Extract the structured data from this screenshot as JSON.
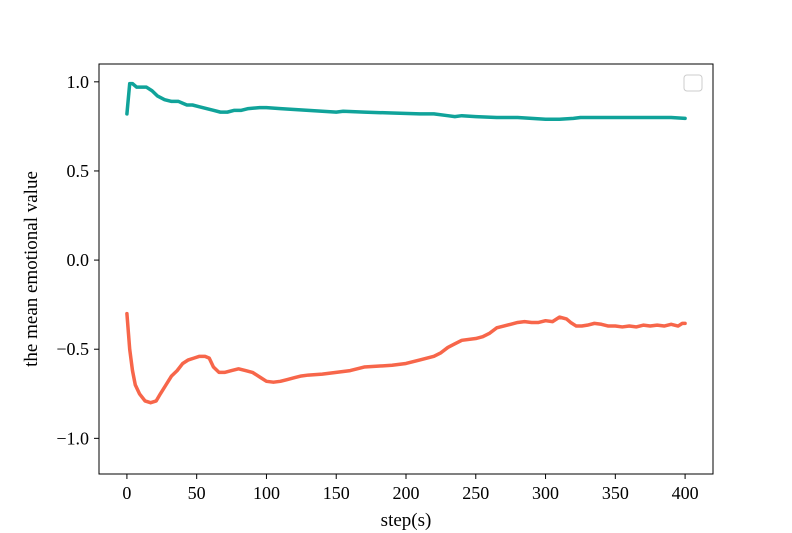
{
  "chart_data": {
    "type": "line",
    "title": "",
    "xlabel": "step(s)",
    "ylabel": "the mean emotional value",
    "xlim": [
      -20,
      420
    ],
    "ylim": [
      -1.2,
      1.1
    ],
    "xticks": [
      0,
      50,
      100,
      150,
      200,
      250,
      300,
      350,
      400
    ],
    "xtick_labels": [
      "0",
      "50",
      "100",
      "150",
      "200",
      "250",
      "300",
      "350",
      "400"
    ],
    "yticks": [
      1.0,
      0.5,
      0.0,
      -0.5,
      -1.0
    ],
    "ytick_labels": [
      "1.0",
      "0.5",
      "0.0",
      "−0.5",
      "−1.0"
    ],
    "grid": false,
    "legend": {
      "placement": "top-right",
      "entries": []
    },
    "series": [
      {
        "color": "#10a39a",
        "points": [
          [
            0,
            0.82
          ],
          [
            2,
            0.99
          ],
          [
            4,
            0.99
          ],
          [
            7,
            0.97
          ],
          [
            10,
            0.97
          ],
          [
            14,
            0.97
          ],
          [
            18,
            0.95
          ],
          [
            22,
            0.92
          ],
          [
            27,
            0.9
          ],
          [
            32,
            0.89
          ],
          [
            37,
            0.89
          ],
          [
            40,
            0.88
          ],
          [
            43,
            0.87
          ],
          [
            47,
            0.87
          ],
          [
            52,
            0.86
          ],
          [
            57,
            0.85
          ],
          [
            62,
            0.84
          ],
          [
            67,
            0.83
          ],
          [
            72,
            0.83
          ],
          [
            77,
            0.84
          ],
          [
            82,
            0.84
          ],
          [
            87,
            0.85
          ],
          [
            95,
            0.855
          ],
          [
            100,
            0.855
          ],
          [
            110,
            0.85
          ],
          [
            120,
            0.845
          ],
          [
            130,
            0.84
          ],
          [
            140,
            0.835
          ],
          [
            150,
            0.83
          ],
          [
            155,
            0.835
          ],
          [
            170,
            0.83
          ],
          [
            190,
            0.825
          ],
          [
            210,
            0.82
          ],
          [
            220,
            0.82
          ],
          [
            230,
            0.81
          ],
          [
            235,
            0.805
          ],
          [
            240,
            0.81
          ],
          [
            250,
            0.805
          ],
          [
            265,
            0.8
          ],
          [
            280,
            0.8
          ],
          [
            290,
            0.795
          ],
          [
            300,
            0.79
          ],
          [
            310,
            0.79
          ],
          [
            320,
            0.795
          ],
          [
            325,
            0.8
          ],
          [
            350,
            0.8
          ],
          [
            370,
            0.8
          ],
          [
            390,
            0.8
          ],
          [
            400,
            0.795
          ]
        ]
      },
      {
        "color": "#f7664a",
        "points": [
          [
            0,
            -0.3
          ],
          [
            1,
            -0.4
          ],
          [
            2,
            -0.5
          ],
          [
            4,
            -0.62
          ],
          [
            6,
            -0.7
          ],
          [
            9,
            -0.75
          ],
          [
            13,
            -0.79
          ],
          [
            17,
            -0.8
          ],
          [
            21,
            -0.79
          ],
          [
            24,
            -0.75
          ],
          [
            28,
            -0.7
          ],
          [
            32,
            -0.65
          ],
          [
            36,
            -0.62
          ],
          [
            40,
            -0.58
          ],
          [
            44,
            -0.56
          ],
          [
            48,
            -0.55
          ],
          [
            52,
            -0.54
          ],
          [
            56,
            -0.54
          ],
          [
            59,
            -0.55
          ],
          [
            62,
            -0.6
          ],
          [
            66,
            -0.63
          ],
          [
            70,
            -0.63
          ],
          [
            75,
            -0.62
          ],
          [
            80,
            -0.61
          ],
          [
            85,
            -0.62
          ],
          [
            90,
            -0.63
          ],
          [
            96,
            -0.66
          ],
          [
            100,
            -0.68
          ],
          [
            105,
            -0.685
          ],
          [
            110,
            -0.68
          ],
          [
            115,
            -0.67
          ],
          [
            120,
            -0.66
          ],
          [
            125,
            -0.65
          ],
          [
            130,
            -0.645
          ],
          [
            140,
            -0.64
          ],
          [
            150,
            -0.63
          ],
          [
            160,
            -0.62
          ],
          [
            170,
            -0.6
          ],
          [
            180,
            -0.595
          ],
          [
            190,
            -0.59
          ],
          [
            200,
            -0.58
          ],
          [
            210,
            -0.56
          ],
          [
            220,
            -0.54
          ],
          [
            225,
            -0.52
          ],
          [
            230,
            -0.49
          ],
          [
            235,
            -0.47
          ],
          [
            240,
            -0.45
          ],
          [
            250,
            -0.44
          ],
          [
            255,
            -0.43
          ],
          [
            260,
            -0.41
          ],
          [
            265,
            -0.38
          ],
          [
            270,
            -0.37
          ],
          [
            275,
            -0.36
          ],
          [
            280,
            -0.35
          ],
          [
            285,
            -0.345
          ],
          [
            290,
            -0.35
          ],
          [
            295,
            -0.35
          ],
          [
            300,
            -0.34
          ],
          [
            305,
            -0.345
          ],
          [
            310,
            -0.32
          ],
          [
            315,
            -0.33
          ],
          [
            318,
            -0.35
          ],
          [
            322,
            -0.37
          ],
          [
            326,
            -0.37
          ],
          [
            330,
            -0.365
          ],
          [
            335,
            -0.355
          ],
          [
            340,
            -0.36
          ],
          [
            345,
            -0.37
          ],
          [
            350,
            -0.37
          ],
          [
            355,
            -0.375
          ],
          [
            360,
            -0.37
          ],
          [
            365,
            -0.375
          ],
          [
            370,
            -0.365
          ],
          [
            375,
            -0.37
          ],
          [
            380,
            -0.365
          ],
          [
            385,
            -0.37
          ],
          [
            390,
            -0.36
          ],
          [
            395,
            -0.37
          ],
          [
            398,
            -0.355
          ],
          [
            400,
            -0.355
          ]
        ]
      }
    ]
  }
}
